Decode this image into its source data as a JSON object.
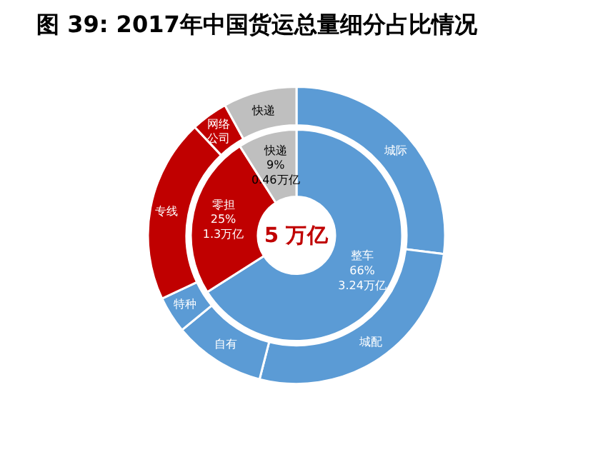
{
  "chart_data": {
    "type": "donut",
    "title": "图  39:  2017年中国货运总量细分占比情况",
    "categories": [
      null,
      null,
      null,
      "城际",
      "城配",
      "自有",
      "特种",
      "专线",
      "网络公司",
      "快递"
    ],
    "series": [
      {
        "values": [
          null,
          null,
          null,
          27,
          27,
          10,
          4,
          20,
          4,
          8
        ],
        "colors": [
          null,
          null,
          null,
          "#5b9bd5",
          "#5b9bd5",
          "#5b9bd5",
          "#5b9bd5",
          "#c00000",
          "#c00000",
          "#bfbfbf"
        ]
      },
      {
        "values": [
          66,
          25,
          9,
          null,
          null,
          null,
          null,
          null,
          null,
          null
        ],
        "colors": [
          "#5b9bd5",
          "#c00000",
          "#bfbfbf",
          null,
          null,
          null,
          null,
          null,
          null,
          null
        ],
        "value_labels": [
          "整车\n66%\n3.24万亿",
          "零担\n25%\n1.3万亿",
          "快递\n9%\n0.46万亿",
          null,
          null,
          null,
          null,
          null,
          null,
          null
        ]
      }
    ],
    "annotations": [
      "5 万亿"
    ]
  }
}
